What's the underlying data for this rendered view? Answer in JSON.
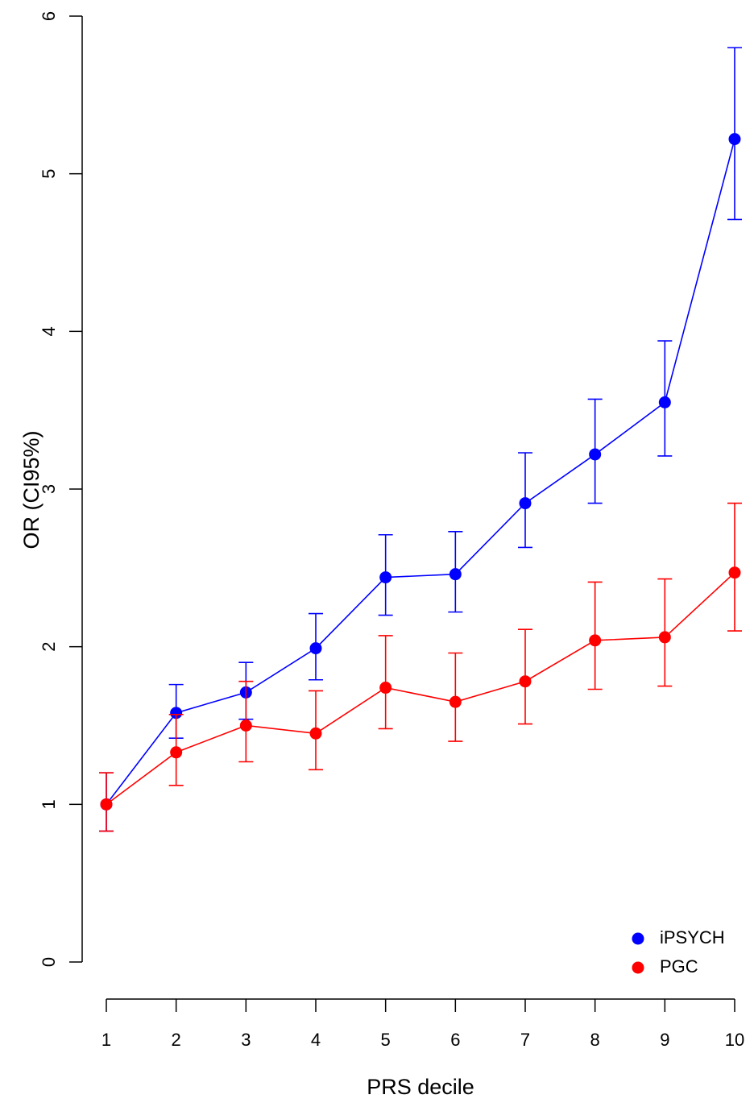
{
  "chart_data": {
    "type": "line",
    "title": "",
    "xlabel": "PRS decile",
    "ylabel": "OR (CI95%)",
    "x": [
      1,
      2,
      3,
      4,
      5,
      6,
      7,
      8,
      9,
      10
    ],
    "xticks": [
      1,
      2,
      3,
      4,
      5,
      6,
      7,
      8,
      9,
      10
    ],
    "yticks": [
      0,
      1,
      2,
      3,
      4,
      5,
      6
    ],
    "ylim": [
      0,
      6
    ],
    "xlim": [
      1,
      10
    ],
    "grid": false,
    "legend_position": "bottom-right",
    "series": [
      {
        "name": "iPSYCH",
        "color": "#0000ff",
        "values": [
          1.0,
          1.58,
          1.71,
          1.99,
          2.44,
          2.46,
          2.91,
          3.22,
          3.55,
          5.22
        ],
        "lower": [
          0.83,
          1.42,
          1.54,
          1.79,
          2.2,
          2.22,
          2.63,
          2.91,
          3.21,
          4.71
        ],
        "upper": [
          1.2,
          1.76,
          1.9,
          2.21,
          2.71,
          2.73,
          3.23,
          3.57,
          3.94,
          5.8
        ]
      },
      {
        "name": "PGC",
        "color": "#ff0000",
        "values": [
          1.0,
          1.33,
          1.5,
          1.45,
          1.74,
          1.65,
          1.78,
          2.04,
          2.06,
          2.47
        ],
        "lower": [
          0.83,
          1.12,
          1.27,
          1.22,
          1.48,
          1.4,
          1.51,
          1.73,
          1.75,
          2.1
        ],
        "upper": [
          1.2,
          1.57,
          1.78,
          1.72,
          2.07,
          1.96,
          2.11,
          2.41,
          2.43,
          2.91
        ]
      }
    ]
  }
}
